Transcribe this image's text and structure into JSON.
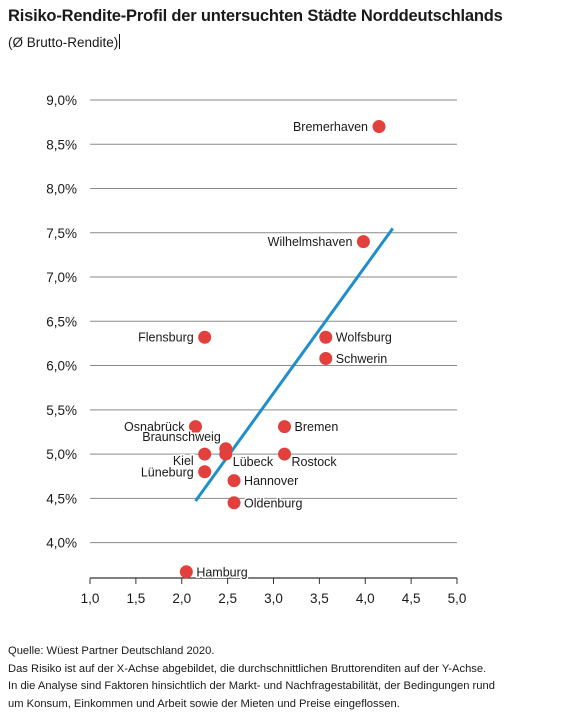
{
  "title": "Risiko-Rendite-Profil der untersuchten Städte Norddeutschlands",
  "subtitle": "(Ø Brutto-Rendite)",
  "footer": {
    "source": "Quelle: Wüest Partner Deutschland 2020.",
    "line1": "Das Risiko ist auf der X-Achse abgebildet, die durchschnittlichen Bruttorenditen auf der Y-Achse.",
    "line2": "In die Analyse sind Faktoren hinsichtlich der Markt- und Nachfragestabilität, der Bedingungen rund",
    "line3": "um Konsum, Einkommen und Arbeit sowie der Mieten und Preise eingeflossen."
  },
  "colors": {
    "point": "#e2403c",
    "trend": "#1f8fcb",
    "grid": "#8a8a8a",
    "axis": "#333333",
    "text": "#1a1a1a"
  },
  "chart_data": {
    "type": "scatter",
    "xlim": [
      1.0,
      5.0
    ],
    "ylim": [
      3.6,
      9.0
    ],
    "x_ticks": [
      1.0,
      1.5,
      2.0,
      2.5,
      3.0,
      3.5,
      4.0,
      4.5,
      5.0
    ],
    "x_tick_labels": [
      "1,0",
      "1,5",
      "2,0",
      "2,5",
      "3,0",
      "3,5",
      "4,0",
      "4,5",
      "5,0"
    ],
    "y_ticks": [
      4.0,
      4.5,
      5.0,
      5.5,
      6.0,
      6.5,
      7.0,
      7.5,
      8.0,
      8.5,
      9.0
    ],
    "y_tick_labels": [
      "4,0%",
      "4,5%",
      "5,0%",
      "5,5%",
      "6,0%",
      "6,5%",
      "7,0%",
      "7,5%",
      "8,0%",
      "8,5%",
      "9,0%"
    ],
    "grid": true,
    "points": [
      {
        "name": "Bremerhaven",
        "x": 4.15,
        "y": 8.7,
        "label_side": "left"
      },
      {
        "name": "Wilhelmshaven",
        "x": 3.98,
        "y": 7.4,
        "label_side": "left"
      },
      {
        "name": "Flensburg",
        "x": 2.25,
        "y": 6.32,
        "label_side": "left"
      },
      {
        "name": "Wolfsburg",
        "x": 3.57,
        "y": 6.32,
        "label_side": "right"
      },
      {
        "name": "Schwerin",
        "x": 3.57,
        "y": 6.08,
        "label_side": "right"
      },
      {
        "name": "Osnabrück",
        "x": 2.15,
        "y": 5.31,
        "label_side": "left"
      },
      {
        "name": "Bremen",
        "x": 3.12,
        "y": 5.31,
        "label_side": "right"
      },
      {
        "name": "Braunschweig",
        "x": 2.48,
        "y": 5.06,
        "label_side": "left-up"
      },
      {
        "name": "Lübeck",
        "x": 2.48,
        "y": 5.0,
        "label_side": "right-down"
      },
      {
        "name": "Kiel",
        "x": 2.25,
        "y": 5.0,
        "label_side": "left-down"
      },
      {
        "name": "Rostock",
        "x": 3.12,
        "y": 5.0,
        "label_side": "right-down"
      },
      {
        "name": "Lüneburg",
        "x": 2.25,
        "y": 4.8,
        "label_side": "left"
      },
      {
        "name": "Hannover",
        "x": 2.57,
        "y": 4.7,
        "label_side": "right"
      },
      {
        "name": "Oldenburg",
        "x": 2.57,
        "y": 4.45,
        "label_side": "right"
      },
      {
        "name": "Hamburg",
        "x": 2.05,
        "y": 3.67,
        "label_side": "right"
      }
    ],
    "trendline": {
      "from": [
        2.15,
        4.47
      ],
      "to": [
        4.3,
        7.55
      ]
    }
  }
}
